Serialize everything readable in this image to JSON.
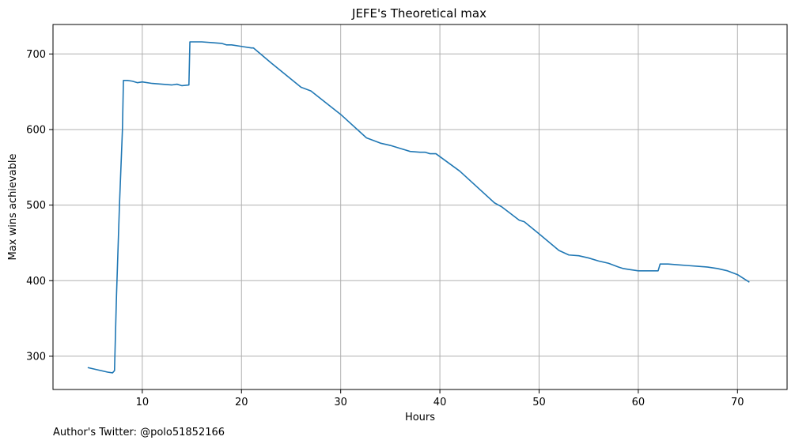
{
  "chart_data": {
    "type": "line",
    "title": "JEFE's Theoretical max",
    "xlabel": "Hours",
    "ylabel": "Max wins achievable",
    "footer": "Author's Twitter: @polo51852166",
    "xlim": [
      1,
      75
    ],
    "ylim": [
      256,
      739
    ],
    "xticks": [
      10,
      20,
      30,
      40,
      50,
      60,
      70
    ],
    "yticks": [
      300,
      400,
      500,
      600,
      700
    ],
    "grid": true,
    "color": "#1f77b4",
    "series": [
      {
        "x": [
          4.5,
          6.5,
          7.0,
          7.2,
          7.4,
          7.7,
          8.0,
          8.1,
          8.5,
          9.0,
          9.5,
          10.0,
          11.0,
          12.0,
          13.0,
          13.5,
          14.0,
          14.7,
          14.8,
          15.0,
          16.0,
          17.0,
          18.0,
          18.5,
          19.0,
          20.0,
          21.0,
          21.2,
          23.0,
          26.0,
          27.0,
          30.0,
          32.6,
          33.0,
          34.0,
          35.0,
          36.0,
          36.5,
          37.0,
          38.0,
          38.5,
          39.0,
          39.6,
          42.0,
          45.5,
          46.2,
          47.0,
          48.0,
          48.5,
          50.0,
          52.0,
          52.5,
          53.0,
          54.0,
          55.0,
          56.0,
          57.0,
          58.0,
          58.5,
          59.0,
          60.0,
          61.0,
          62.0,
          62.2,
          63.0,
          64.0,
          65.0,
          66.0,
          67.0,
          68.0,
          69.0,
          70.0,
          71.2
        ],
        "y": [
          285,
          279,
          278,
          281,
          380,
          500,
          600,
          665,
          665,
          664,
          662,
          663,
          661,
          660,
          659,
          660,
          658,
          659,
          716,
          716,
          716,
          715,
          714,
          712,
          712,
          710,
          708,
          708,
          688,
          656,
          651,
          620,
          589,
          587,
          582,
          579,
          575,
          573,
          571,
          570,
          570,
          568,
          568,
          545,
          503,
          498,
          490,
          480,
          478,
          462,
          440,
          437,
          434,
          433,
          430,
          426,
          423,
          418,
          416,
          415,
          413,
          413,
          413,
          422,
          422,
          421,
          420,
          419,
          418,
          416,
          413,
          408,
          398
        ]
      }
    ]
  }
}
